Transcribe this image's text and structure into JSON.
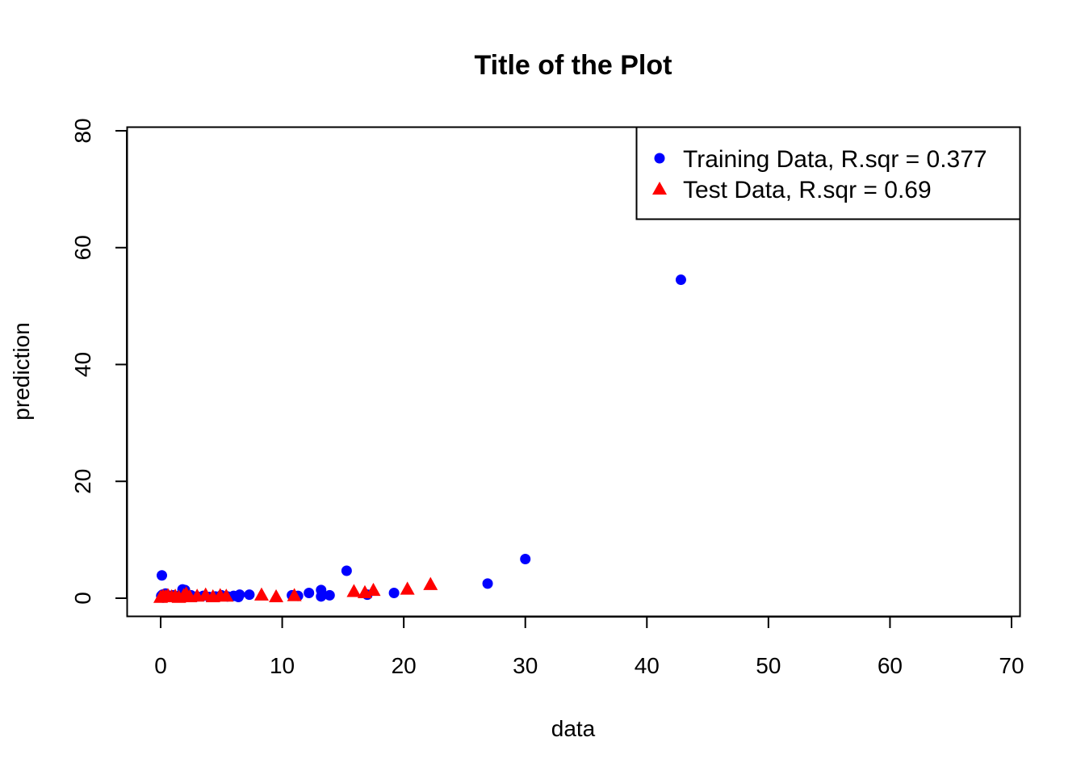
{
  "chart_data": {
    "type": "scatter",
    "title": "Title of the Plot",
    "xlabel": "data",
    "ylabel": "prediction",
    "xlim": [
      0,
      70
    ],
    "ylim": [
      0,
      80
    ],
    "x_ticks": [
      "0",
      "10",
      "20",
      "30",
      "40",
      "50",
      "60",
      "70"
    ],
    "y_ticks": [
      "0",
      "20",
      "40",
      "60",
      "80"
    ],
    "grid": false,
    "legend_position": "top-right",
    "series": [
      {
        "name": "Training Data, R.sqr = 0.377",
        "marker": "circle",
        "color": "#0000ff",
        "points": [
          [
            0.05,
            0.4
          ],
          [
            0.1,
            0.2
          ],
          [
            0.15,
            0.6
          ],
          [
            0.2,
            0.1
          ],
          [
            0.25,
            0.3
          ],
          [
            0.3,
            0.5
          ],
          [
            0.4,
            0.8
          ],
          [
            0.5,
            0.2
          ],
          [
            0.6,
            0.4
          ],
          [
            0.8,
            0.3
          ],
          [
            1.0,
            0.5
          ],
          [
            1.2,
            0.2
          ],
          [
            1.5,
            0.4
          ],
          [
            1.8,
            1.5
          ],
          [
            2.0,
            1.4
          ],
          [
            2.2,
            0.3
          ],
          [
            2.5,
            0.5
          ],
          [
            3.0,
            0.3
          ],
          [
            3.5,
            0.4
          ],
          [
            4.0,
            0.2
          ],
          [
            4.5,
            0.3
          ],
          [
            5.0,
            0.5
          ],
          [
            5.5,
            0.3
          ],
          [
            6.0,
            0.4
          ],
          [
            6.4,
            0.2
          ],
          [
            6.5,
            0.6
          ],
          [
            7.3,
            0.6
          ],
          [
            0.1,
            3.9
          ],
          [
            10.8,
            0.5
          ],
          [
            11.3,
            0.4
          ],
          [
            12.2,
            0.9
          ],
          [
            13.2,
            1.4
          ],
          [
            13.2,
            0.3
          ],
          [
            13.9,
            0.5
          ],
          [
            15.3,
            4.7
          ],
          [
            17.0,
            0.6
          ],
          [
            19.2,
            0.9
          ],
          [
            26.9,
            2.5
          ],
          [
            30.0,
            6.7
          ],
          [
            42.8,
            54.5
          ]
        ]
      },
      {
        "name": "Test Data, R.sqr = 0.69",
        "marker": "triangle",
        "color": "#ff0000",
        "points": [
          [
            0.0,
            0.2
          ],
          [
            0.2,
            0.4
          ],
          [
            0.4,
            0.3
          ],
          [
            0.6,
            0.5
          ],
          [
            0.9,
            0.3
          ],
          [
            1.2,
            0.4
          ],
          [
            1.5,
            0.2
          ],
          [
            1.9,
            0.5
          ],
          [
            2.1,
            0.8
          ],
          [
            2.4,
            0.3
          ],
          [
            3.0,
            0.4
          ],
          [
            3.7,
            0.6
          ],
          [
            4.3,
            0.3
          ],
          [
            4.9,
            0.5
          ],
          [
            5.4,
            0.4
          ],
          [
            8.3,
            0.6
          ],
          [
            9.5,
            0.3
          ],
          [
            11.0,
            0.5
          ],
          [
            15.9,
            1.2
          ],
          [
            16.8,
            1.0
          ],
          [
            17.5,
            1.4
          ],
          [
            20.3,
            1.6
          ],
          [
            22.2,
            2.4
          ]
        ]
      }
    ]
  },
  "colors": {
    "training": "#0000ff",
    "test": "#ff0000",
    "axis": "#000000"
  }
}
